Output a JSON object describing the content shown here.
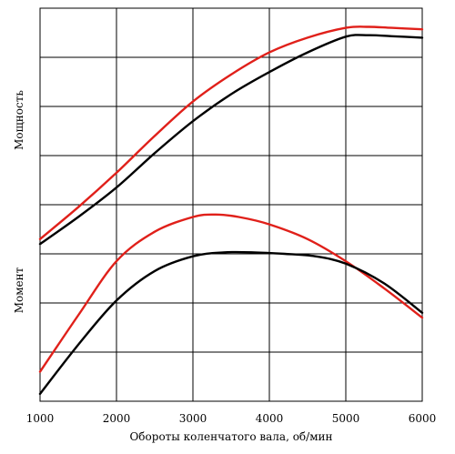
{
  "chart_data": {
    "type": "line",
    "xlabel": "Обороты коленчатого вала, об/мин",
    "ylabel_top": "Мощность",
    "ylabel_bottom": "Момент",
    "xlim": [
      1000,
      6000
    ],
    "ylim": [
      0,
      8
    ],
    "y_ticks_labeled": false,
    "grid": true,
    "x_ticks": [
      1000,
      2000,
      3000,
      4000,
      5000,
      6000
    ],
    "y_grid": [
      1,
      2,
      3,
      4,
      5,
      6,
      7,
      8
    ],
    "series": [
      {
        "color": "#e0201a",
        "x": [
          1000,
          1500,
          2000,
          2500,
          3000,
          3500,
          4000,
          4500,
          5000,
          5300,
          5600,
          6000
        ],
        "y": [
          3.3,
          3.95,
          4.65,
          5.4,
          6.1,
          6.65,
          7.1,
          7.4,
          7.6,
          7.62,
          7.6,
          7.57
        ]
      },
      {
        "color": "#000000",
        "x": [
          1000,
          1500,
          2000,
          2500,
          3000,
          3500,
          4000,
          4500,
          5000,
          5300,
          5600,
          6000
        ],
        "y": [
          3.2,
          3.75,
          4.35,
          5.05,
          5.7,
          6.25,
          6.7,
          7.1,
          7.42,
          7.45,
          7.43,
          7.4
        ]
      },
      {
        "color": "#e0201a",
        "x": [
          1000,
          1500,
          2000,
          2500,
          3000,
          3300,
          3600,
          4000,
          4500,
          5000,
          5500,
          6000
        ],
        "y": [
          0.6,
          1.75,
          2.85,
          3.45,
          3.75,
          3.8,
          3.75,
          3.6,
          3.3,
          2.85,
          2.3,
          1.7
        ]
      },
      {
        "color": "#000000",
        "x": [
          1000,
          1500,
          2000,
          2500,
          3000,
          3400,
          3800,
          4200,
          4600,
          5000,
          5500,
          6000
        ],
        "y": [
          0.15,
          1.15,
          2.05,
          2.65,
          2.95,
          3.03,
          3.03,
          3.0,
          2.95,
          2.8,
          2.4,
          1.8
        ]
      }
    ]
  }
}
